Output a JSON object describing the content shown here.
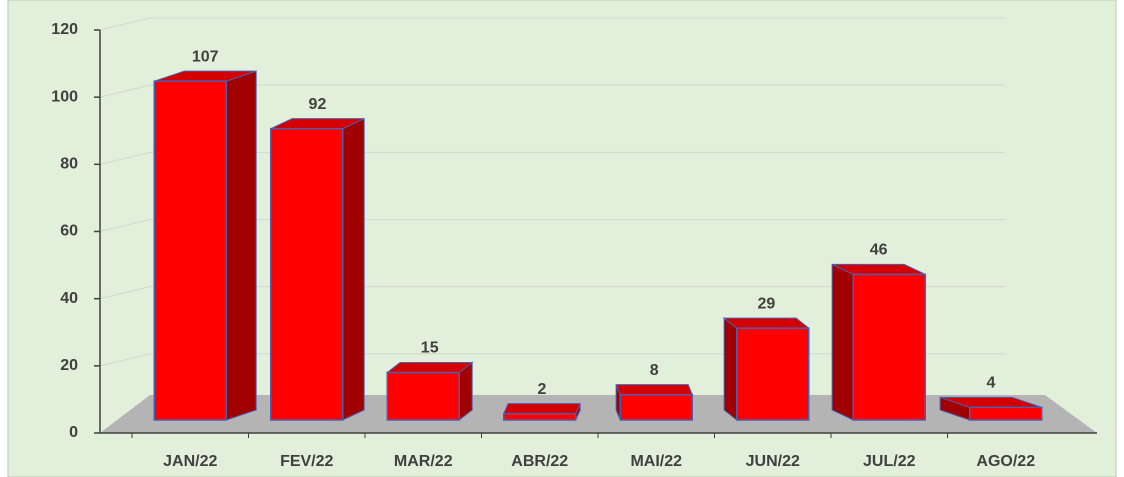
{
  "chart_data": {
    "type": "bar",
    "categories": [
      "JAN/22",
      "FEV/22",
      "MAR/22",
      "ABR/22",
      "MAI/22",
      "JUN/22",
      "JUL/22",
      "AGO/22"
    ],
    "values": [
      107,
      92,
      15,
      2,
      8,
      29,
      46,
      4
    ],
    "color": "#ff0000",
    "ylim": [
      0,
      120
    ],
    "yticks": [
      0,
      20,
      40,
      60,
      80,
      100,
      120
    ],
    "grid": true
  }
}
